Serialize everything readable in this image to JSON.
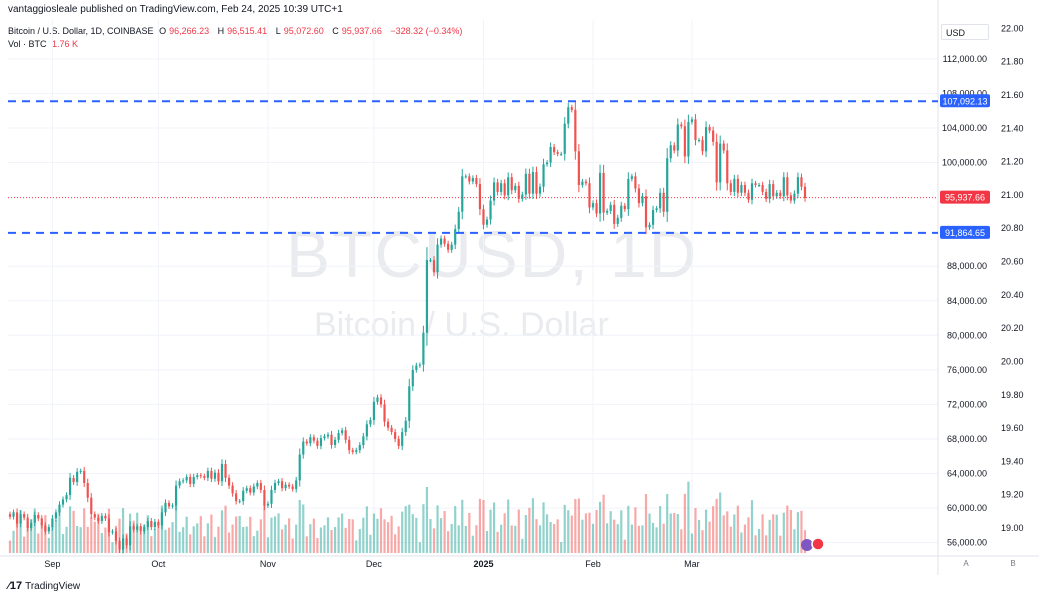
{
  "publisher_line": "vantaggiosleale published on TradingView.com, Feb 24, 2025 10:39 UTC+1",
  "legend": {
    "symbol": "Bitcoin / U.S. Dollar, 1D, COINBASE",
    "open_label": "O",
    "open": "96,266.23",
    "high_label": "H",
    "high": "96,515.41",
    "low_label": "L",
    "low": "95,072.60",
    "close_label": "C",
    "close": "95,937.66",
    "change": "−328.32 (−0.34%)",
    "vol_label": "Vol · BTC",
    "vol": "1.76 K"
  },
  "watermark": {
    "title": "BTCUSD, 1D",
    "subtitle": "Bitcoin / U.S. Dollar"
  },
  "currency": "USD",
  "branding": "TradingView",
  "scale_buttons": [
    "A",
    "B"
  ],
  "colors": {
    "up": "#26a69a",
    "down": "#ef5350",
    "level_line": "#2962ff",
    "price_line": "#f23645"
  },
  "chart_data": {
    "type": "candlestick",
    "x_tick_labels": [
      "Sep",
      "Oct",
      "Nov",
      "Dec",
      "2025",
      "Feb",
      "Mar"
    ],
    "y_axis_right": {
      "ticks": [
        "56,000.00",
        "60,000.00",
        "64,000.00",
        "68,000.00",
        "72,000.00",
        "76,000.00",
        "80,000.00",
        "84,000.00",
        "88,000.00",
        "100,000.00",
        "104,000.00",
        "108,000.00",
        "112,000.00"
      ],
      "ylim": [
        54800,
        116500
      ]
    },
    "y_axis_outer": {
      "ticks": [
        "19.00",
        "19.20",
        "19.40",
        "19.60",
        "19.80",
        "20.00",
        "20.20",
        "20.40",
        "20.60",
        "20.80",
        "21.00",
        "21.20",
        "21.40",
        "21.60",
        "21.80",
        "22.00"
      ],
      "ylim": [
        18.85,
        22.05
      ]
    },
    "levels": [
      {
        "value": 107092.13,
        "label": "107,092.13"
      },
      {
        "value": 91864.65,
        "label": "91,864.65"
      }
    ],
    "last_price": {
      "value": 95937.66,
      "label": "95,937.66"
    },
    "series": [
      {
        "name": "Close",
        "values": [
          59000,
          59500,
          58200,
          59300,
          58900,
          57700,
          58300,
          59200,
          58800,
          58000,
          57300,
          57800,
          58800,
          59500,
          60400,
          61000,
          61500,
          63500,
          63000,
          64200,
          64300,
          62900,
          61200,
          59300,
          58900,
          58500,
          59100,
          58800,
          57200,
          57300,
          56200,
          55200,
          56500,
          55700,
          57900,
          57500,
          57900,
          57300,
          57800,
          58500,
          57800,
          58400,
          58000,
          59500,
          60600,
          60200,
          60300,
          62600,
          63100,
          63200,
          63600,
          62800,
          63600,
          63800,
          63700,
          63500,
          64300,
          63400,
          64100,
          63100,
          65100,
          63500,
          62600,
          61700,
          60800,
          60800,
          62000,
          62300,
          61800,
          62500,
          62900,
          62100,
          60300,
          60500,
          62100,
          62900,
          63100,
          62300,
          62700,
          62500,
          62200,
          63200,
          66200,
          67700,
          67500,
          68200,
          67800,
          67200,
          68100,
          68300,
          68500,
          67300,
          67900,
          68700,
          69000,
          67900,
          66700,
          66500,
          66700,
          67300,
          68300,
          69700,
          70200,
          72300,
          72800,
          72000,
          70000,
          69300,
          68800,
          68000,
          67200,
          68800,
          70100,
          74100,
          76000,
          76500,
          76600,
          80300,
          88700,
          88700,
          87300,
          90500,
          91200,
          90600,
          89900,
          90500,
          92300,
          94300,
          98400,
          98400,
          97800,
          98200,
          97500,
          94600,
          92800,
          93400,
          95600,
          97700,
          96600,
          97600,
          96200,
          98300,
          96800,
          97300,
          95800,
          96300,
          98700,
          96400,
          98900,
          96400,
          97200,
          99800,
          100000,
          101800,
          101200,
          101000,
          101000,
          104500,
          106400,
          106100,
          101300,
          97400,
          97800,
          97600,
          94800,
          95300,
          94100,
          98800,
          94200,
          94400,
          95100,
          92900,
          93600,
          95000,
          94600,
          98100,
          98400,
          97000,
          95300,
          96100,
          92500,
          92800,
          94500,
          94700,
          96500,
          94300,
          100500,
          102000,
          101400,
          104400,
          104200,
          100700,
          104700,
          105000,
          102600,
          102600,
          101300,
          104100,
          103700,
          102400,
          97700,
          102200,
          101400,
          97600,
          96600,
          98100,
          96500,
          97400,
          96500,
          95700,
          97600,
          97400,
          97400,
          96600,
          95800,
          97500,
          96100,
          96500,
          96100,
          98300,
          96200,
          95600,
          96400,
          98300,
          97200,
          95900
        ]
      }
    ]
  }
}
